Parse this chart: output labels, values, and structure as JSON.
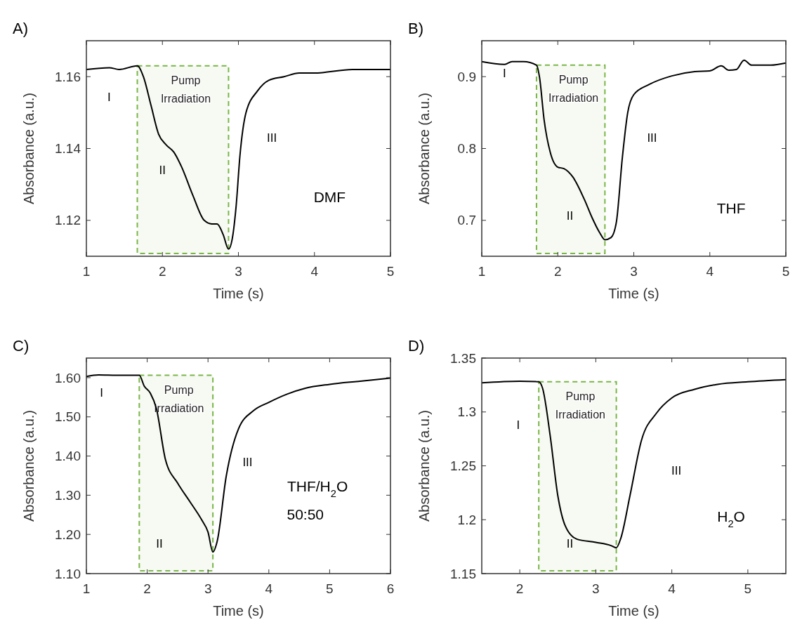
{
  "chart_data": [
    {
      "type": "line",
      "title": "A)",
      "xlabel": "Time (s)",
      "ylabel": "Absorbance (a.u.)",
      "xlim": [
        1,
        5
      ],
      "xticks": [
        1,
        2,
        3,
        4,
        5
      ],
      "ylim": [
        1.11,
        1.17
      ],
      "yticks": [
        1.12,
        1.14,
        1.16
      ],
      "series": [
        {
          "color": "#000000",
          "x": [
            1,
            1.3,
            1.43,
            1.67,
            1.75,
            1.85,
            1.95,
            2.05,
            2.15,
            2.25,
            2.4,
            2.55,
            2.65,
            2.72,
            2.8,
            2.87,
            2.92,
            2.97,
            3.02,
            3.1,
            3.25,
            3.4,
            3.6,
            3.8,
            4,
            4.5,
            5
          ],
          "values": [
            1.162,
            1.1625,
            1.162,
            1.163,
            1.16,
            1.152,
            1.144,
            1.141,
            1.139,
            1.135,
            1.127,
            1.12,
            1.119,
            1.119,
            1.116,
            1.112,
            1.115,
            1.124,
            1.138,
            1.15,
            1.156,
            1.159,
            1.16,
            1.161,
            1.161,
            1.162,
            1.162
          ]
        }
      ],
      "bands": [
        {
          "axis": "x",
          "from": 1.67,
          "to": 2.87,
          "label": "Pump Irradiation",
          "color": "#7ab648"
        }
      ],
      "annotations": [
        "I",
        "II",
        "III",
        "DMF"
      ]
    },
    {
      "type": "line",
      "title": "B)",
      "xlabel": "Time (s)",
      "ylabel": "Absorbance (a.u.)",
      "xlim": [
        1,
        5
      ],
      "xticks": [
        1,
        2,
        3,
        4,
        5
      ],
      "ylim": [
        0.65,
        0.95
      ],
      "yticks": [
        0.7,
        0.8,
        0.9
      ],
      "series": [
        {
          "color": "#000000",
          "x": [
            1,
            1.3,
            1.4,
            1.55,
            1.72,
            1.76,
            1.82,
            1.9,
            2,
            2.08,
            2.2,
            2.35,
            2.45,
            2.55,
            2.62,
            2.7,
            2.77,
            2.85,
            2.92,
            3,
            3.2,
            3.5,
            3.8,
            4,
            4.15,
            4.25,
            4.35,
            4.45,
            4.55,
            4.8,
            5
          ],
          "values": [
            0.921,
            0.917,
            0.921,
            0.921,
            0.916,
            0.899,
            0.84,
            0.795,
            0.774,
            0.772,
            0.76,
            0.729,
            0.704,
            0.683,
            0.673,
            0.676,
            0.697,
            0.788,
            0.85,
            0.875,
            0.889,
            0.901,
            0.907,
            0.908,
            0.915,
            0.909,
            0.91,
            0.923,
            0.916,
            0.916,
            0.919
          ]
        }
      ],
      "bands": [
        {
          "axis": "x",
          "from": 1.72,
          "to": 2.62,
          "label": "Pump Irradiation",
          "color": "#7ab648"
        }
      ],
      "annotations": [
        "I",
        "II",
        "III",
        "THF"
      ]
    },
    {
      "type": "line",
      "title": "C)",
      "xlabel": "Time (s)",
      "ylabel": "Absorbance (a.u.)",
      "xlim": [
        1,
        6
      ],
      "xticks": [
        1,
        2,
        3,
        4,
        5,
        6
      ],
      "ylim": [
        1.1,
        1.65
      ],
      "yticks": [
        {
          "value": 1.1,
          "label": "1.10"
        },
        {
          "value": 1.2,
          "label": "1.20"
        },
        {
          "value": 1.3,
          "label": "1.30"
        },
        {
          "value": 1.4,
          "label": "1.40"
        },
        {
          "value": 1.5,
          "label": "1.50"
        },
        {
          "value": 1.6,
          "label": "1.60"
        }
      ],
      "series": [
        {
          "color": "#000000",
          "x": [
            1,
            1.2,
            1.5,
            1.87,
            1.95,
            2.05,
            2.15,
            2.3,
            2.5,
            2.7,
            2.9,
            3,
            3.08,
            3.15,
            3.3,
            3.5,
            3.75,
            4,
            4.3,
            4.6,
            5,
            5.5,
            6
          ],
          "values": [
            1.603,
            1.607,
            1.606,
            1.606,
            1.579,
            1.561,
            1.522,
            1.391,
            1.331,
            1.284,
            1.236,
            1.206,
            1.155,
            1.182,
            1.349,
            1.469,
            1.516,
            1.537,
            1.558,
            1.573,
            1.583,
            1.591,
            1.599
          ]
        }
      ],
      "bands": [
        {
          "axis": "x",
          "from": 1.87,
          "to": 3.08,
          "label": "Pump Irradiation",
          "color": "#7ab648"
        }
      ],
      "annotations": [
        "I",
        "II",
        "III",
        "THF/H$_{2}$O",
        "50:50"
      ]
    },
    {
      "type": "line",
      "title": "D)",
      "xlabel": "Time (s)",
      "ylabel": "Absorbance (a.u.)",
      "xlim": [
        1.5,
        5.5
      ],
      "xticks": [
        2,
        3,
        4,
        5
      ],
      "ylim": [
        1.15,
        1.35
      ],
      "yticks": [
        1.15,
        1.2,
        1.25,
        1.3,
        1.35
      ],
      "series": [
        {
          "color": "#000000",
          "x": [
            1.5,
            2,
            2.25,
            2.3,
            2.4,
            2.5,
            2.6,
            2.75,
            3,
            3.2,
            3.27,
            3.33,
            3.45,
            3.6,
            3.8,
            4,
            4.3,
            4.6,
            5,
            5.5
          ],
          "values": [
            1.327,
            1.3285,
            1.328,
            1.322,
            1.278,
            1.2225,
            1.194,
            1.182,
            1.179,
            1.176,
            1.174,
            1.183,
            1.2225,
            1.2735,
            1.299,
            1.313,
            1.321,
            1.3256,
            1.328,
            1.33
          ]
        }
      ],
      "bands": [
        {
          "axis": "x",
          "from": 2.25,
          "to": 3.27,
          "label": "Pump Irradiation",
          "color": "#7ab648"
        }
      ],
      "annotations": [
        "I",
        "II",
        "III",
        "H$_{2}$O"
      ]
    }
  ]
}
